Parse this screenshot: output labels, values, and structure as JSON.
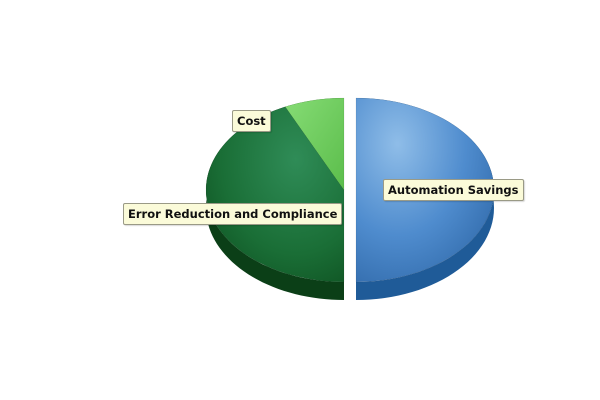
{
  "chart_data": {
    "type": "pie",
    "style": "3d-exploded",
    "slices": [
      {
        "label": "Automation Savings",
        "value": 50,
        "color": "#3d78b9",
        "exploded": true
      },
      {
        "label": "Error Reduction and Compliance",
        "value": 43,
        "color": "#1e7a3e",
        "exploded": false
      },
      {
        "label": "Cost",
        "value": 7,
        "color": "#6ccb5c",
        "exploded": false
      }
    ],
    "legend": "none",
    "labels": "callouts"
  }
}
